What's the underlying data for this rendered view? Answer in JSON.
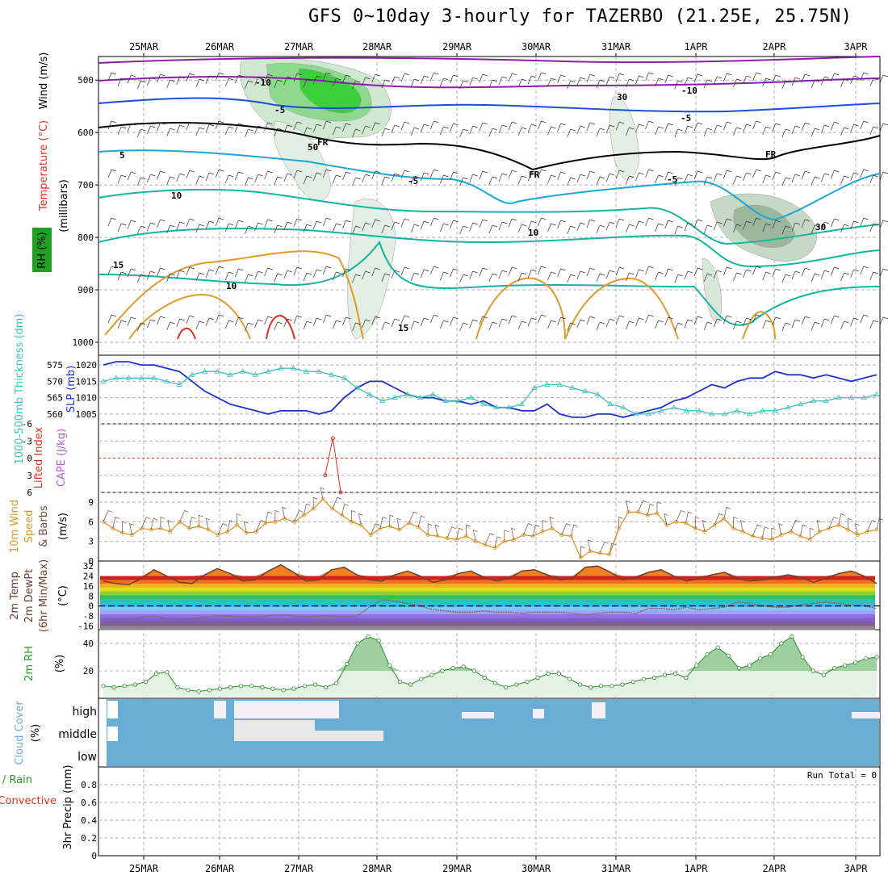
{
  "title": "GFS 0~10day 3-hourly for TAZERBO (21.25E, 25.75N)",
  "colors": {
    "purple": "#8b1ea8",
    "blue": "#1c4fd6",
    "cyan": "#1aa7d8",
    "teal": "#14b5a0",
    "orange": "#e09a2a",
    "red": "#e03020",
    "green": "#22a022",
    "sky": "#6aaed6",
    "slp": "#1e32c8",
    "thick": "#3fbfbf",
    "wind": "#e0962a"
  },
  "chart_data": [
    {
      "type": "contour",
      "id": "profile",
      "dates": [
        "25MAR",
        "26MAR",
        "27MAR",
        "28MAR",
        "29MAR",
        "30MAR",
        "31MAR",
        "1APR",
        "2APR",
        "3APR"
      ],
      "ylabel": "(millibars)",
      "yticks": [
        500,
        600,
        700,
        800,
        900,
        1000
      ],
      "side_labels": {
        "wind": "Wind (m/s)",
        "temp": "Temperature (°C)",
        "rh": "RH (%)"
      },
      "contour_labels": [
        "-10",
        "-10",
        "-5",
        "-5",
        "FR",
        "FR",
        "FR",
        "-5",
        "-5",
        "5",
        "10",
        "10",
        "15",
        "15",
        "10",
        "50",
        "30",
        "30"
      ]
    },
    {
      "type": "line",
      "id": "slp",
      "ylabel_left": "1000-500mb Thickness (dm)",
      "ylabel_right": "SLP (mb)",
      "thickness_ticks": [
        560,
        565,
        570,
        575
      ],
      "slp_ticks": [
        1005,
        1010,
        1015,
        1020
      ],
      "thickness_ylim": [
        557,
        578
      ],
      "slp_ylim": [
        1002,
        1023
      ],
      "slp_series": [
        1020,
        1021,
        1021,
        1020,
        1020,
        1019,
        1018,
        1015,
        1012,
        1010,
        1008,
        1007,
        1006,
        1005,
        1006,
        1006,
        1006,
        1005,
        1006,
        1010,
        1013,
        1015,
        1015,
        1013,
        1011,
        1010,
        1010,
        1009,
        1009,
        1008,
        1009,
        1007,
        1007,
        1006,
        1006,
        1008,
        1005,
        1004,
        1004,
        1005,
        1005,
        1004,
        1005,
        1006,
        1007,
        1009,
        1010,
        1012,
        1014,
        1013,
        1015,
        1016,
        1016,
        1018,
        1017,
        1017,
        1016,
        1017,
        1016,
        1015,
        1016,
        1017
      ],
      "thickness_series": [
        570,
        571,
        571,
        571,
        571,
        570,
        569,
        572,
        573,
        573,
        572,
        573,
        572,
        573,
        574,
        574,
        573,
        573,
        572,
        571,
        568,
        566,
        564,
        565,
        566,
        565,
        566,
        564,
        564,
        565,
        563,
        562,
        562,
        563,
        568,
        569,
        569,
        568,
        567,
        566,
        563,
        562,
        560,
        560,
        561,
        562,
        561,
        561,
        560,
        560,
        561,
        560,
        561,
        561,
        562,
        563,
        564,
        564,
        565,
        565,
        565,
        566
      ]
    },
    {
      "type": "line",
      "id": "cape",
      "ylabel_left": "Lifted Index",
      "ylabel_right": "CAPE (J/kg)",
      "yticks_labels": [
        "-6",
        "-3",
        "0",
        "3",
        "6"
      ],
      "ylim": [
        -6,
        6
      ],
      "li_series": [
        {
          "x": 0.29,
          "y": 3
        },
        {
          "x": 0.3,
          "y": -3.5
        },
        {
          "x": 0.31,
          "y": 6
        }
      ]
    },
    {
      "type": "line",
      "id": "wind10",
      "ylabel": "10m Wind Speed & Barbs (m/s)",
      "yticks": [
        0,
        3,
        6,
        9
      ],
      "ylim": [
        0,
        10.5
      ],
      "values": [
        6,
        5,
        4.3,
        4,
        5,
        4.8,
        5,
        4.5,
        6,
        5,
        5.3,
        4.8,
        4,
        4.5,
        5.5,
        4.3,
        4.5,
        5.8,
        6,
        6.5,
        6,
        7,
        8,
        9.5,
        8,
        7,
        6,
        5.5,
        4,
        5,
        5.3,
        4.8,
        5.8,
        5.2,
        4,
        3.8,
        3.5,
        3.3,
        3.8,
        3,
        2.5,
        2,
        3,
        3.3,
        4,
        3.8,
        4.5,
        5,
        4,
        3.8,
        0.5,
        1.5,
        1.2,
        1,
        5,
        7.5,
        7.5,
        7,
        7.3,
        5.5,
        6,
        5.8,
        5,
        4.5,
        5.5,
        6.5,
        5,
        4.5,
        3.8,
        3.5,
        3.3,
        4,
        4.5,
        3.8,
        3.3,
        4.5,
        5,
        5.5,
        4.8,
        4,
        4.5,
        4.8
      ]
    },
    {
      "type": "area",
      "id": "temp",
      "ylabel": "2m Temp 2m DewPt (6hr Min/Max) (°C)",
      "yticks": [
        -16,
        -8,
        0,
        8,
        16,
        24,
        32
      ],
      "ylim": [
        -19,
        36
      ],
      "temp_series": [
        20,
        18,
        17,
        22,
        29,
        24,
        19,
        18,
        25,
        30,
        26,
        20,
        21,
        28,
        33,
        27,
        20,
        21,
        29,
        31,
        25,
        21,
        20,
        25,
        28,
        24,
        19,
        21,
        26,
        28,
        23,
        20,
        22,
        28,
        29,
        25,
        21,
        22,
        31,
        32,
        27,
        21,
        23,
        27,
        29,
        24,
        20,
        22,
        25,
        27,
        22,
        20,
        21,
        23,
        25,
        23,
        19,
        22,
        26,
        28,
        24,
        18
      ],
      "dew_series": [
        -10,
        -11,
        -11,
        -9,
        -8,
        -10,
        -11,
        -10,
        -9,
        -8,
        -8,
        -9,
        -9,
        -8,
        -7,
        -8,
        -9,
        -8,
        -8,
        -9,
        -8,
        -1,
        5,
        4,
        2,
        0,
        -3,
        -4,
        -5,
        -5,
        -4,
        -5,
        -5,
        -6,
        -5,
        -5,
        -5,
        -6,
        -7,
        -6,
        -5,
        -5,
        -6,
        -2,
        -2,
        -3,
        -1,
        -3,
        -2,
        -1,
        3,
        2,
        0,
        -1,
        -1,
        1,
        2,
        3,
        2,
        1,
        0,
        -2
      ]
    },
    {
      "type": "area",
      "id": "rh",
      "ylabel": "2m RH (%)",
      "yticks": [
        20,
        40
      ],
      "ylim": [
        0,
        50
      ],
      "values": [
        9,
        8,
        9,
        10,
        12,
        18,
        19,
        8,
        6,
        5,
        6,
        7,
        8,
        9,
        9,
        8,
        7,
        6,
        7,
        9,
        10,
        8,
        11,
        25,
        40,
        45,
        42,
        24,
        12,
        10,
        14,
        17,
        20,
        22,
        23,
        20,
        15,
        11,
        8,
        10,
        12,
        15,
        18,
        18,
        14,
        10,
        8,
        9,
        9,
        10,
        12,
        14,
        15,
        17,
        18,
        15,
        24,
        32,
        37,
        31,
        22,
        24,
        29,
        32,
        40,
        45,
        30,
        20,
        17,
        22,
        24,
        26,
        29,
        30
      ]
    },
    {
      "type": "heatmap",
      "id": "cloud",
      "ylabel": "Cloud Cover (%)",
      "levels": [
        "high",
        "middle",
        "low"
      ],
      "ylabel_band_top": "high",
      "ylabel_band_mid": "middle",
      "ylabel_band_low": "low"
    },
    {
      "type": "bar",
      "id": "precip",
      "ylabel_left": "Total / Rain",
      "ylabel_left2": "Convective",
      "ylabel": "3hr Precip (mm)",
      "yticks": [
        0,
        0.2,
        0.4,
        0.6,
        0.8
      ],
      "ylim": [
        0,
        1.0
      ],
      "run_total": "Run Total = 0",
      "values": []
    }
  ]
}
